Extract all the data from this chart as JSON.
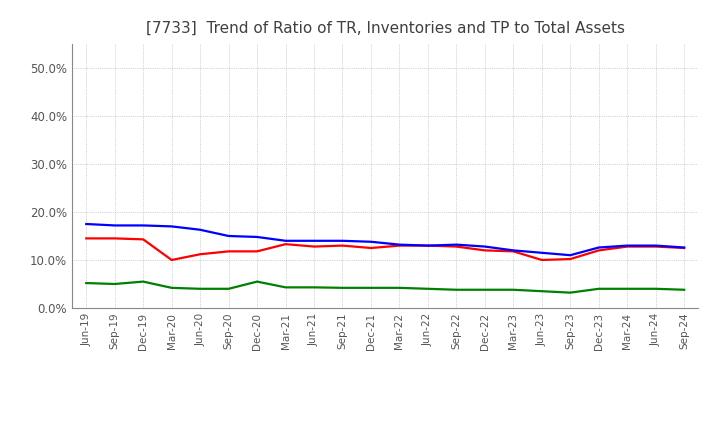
{
  "title": "[7733]  Trend of Ratio of TR, Inventories and TP to Total Assets",
  "x_labels": [
    "Jun-19",
    "Sep-19",
    "Dec-19",
    "Mar-20",
    "Jun-20",
    "Sep-20",
    "Dec-20",
    "Mar-21",
    "Jun-21",
    "Sep-21",
    "Dec-21",
    "Mar-22",
    "Jun-22",
    "Sep-22",
    "Dec-22",
    "Mar-23",
    "Jun-23",
    "Sep-23",
    "Dec-23",
    "Mar-24",
    "Jun-24",
    "Sep-24"
  ],
  "trade_receivables": [
    0.145,
    0.145,
    0.143,
    0.1,
    0.112,
    0.118,
    0.118,
    0.133,
    0.128,
    0.13,
    0.125,
    0.13,
    0.13,
    0.128,
    0.12,
    0.118,
    0.1,
    0.102,
    0.12,
    0.128,
    0.128,
    0.125
  ],
  "inventories": [
    0.175,
    0.172,
    0.172,
    0.17,
    0.163,
    0.15,
    0.148,
    0.14,
    0.14,
    0.14,
    0.138,
    0.132,
    0.13,
    0.132,
    0.128,
    0.12,
    0.115,
    0.11,
    0.126,
    0.13,
    0.13,
    0.126
  ],
  "trade_payables": [
    0.052,
    0.05,
    0.055,
    0.042,
    0.04,
    0.04,
    0.055,
    0.043,
    0.043,
    0.042,
    0.042,
    0.042,
    0.04,
    0.038,
    0.038,
    0.038,
    0.035,
    0.032,
    0.04,
    0.04,
    0.04,
    0.038
  ],
  "tr_color": "#ff0000",
  "inv_color": "#0000ff",
  "tp_color": "#008000",
  "ylim": [
    0.0,
    0.55
  ],
  "yticks": [
    0.0,
    0.1,
    0.2,
    0.3,
    0.4,
    0.5
  ],
  "background_color": "#ffffff",
  "grid_color": "#aaaaaa",
  "title_fontsize": 11,
  "title_color": "#404040",
  "tick_color": "#555555",
  "line_width": 1.6
}
